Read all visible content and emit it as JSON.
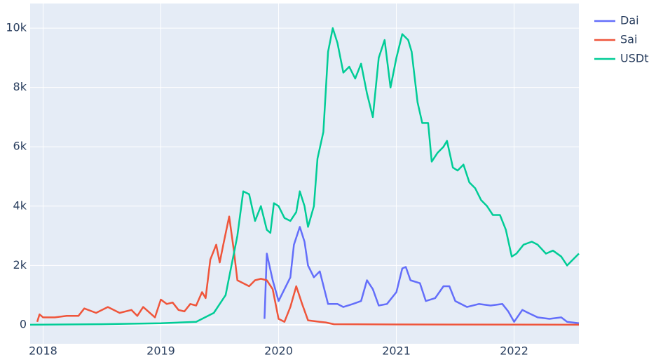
{
  "chart_data": {
    "type": "line",
    "xlim": [
      2017.89,
      2022.55
    ],
    "xticks": [
      2018,
      2019,
      2020,
      2021,
      2022
    ],
    "ylim": [
      -640,
      10830
    ],
    "yticks": [
      0,
      {
        "value": 2000,
        "label": "2k"
      },
      {
        "value": 4000,
        "label": "4k"
      },
      {
        "value": 6000,
        "label": "6k"
      },
      {
        "value": 8000,
        "label": "8k"
      },
      {
        "value": 10000,
        "label": "10k"
      }
    ],
    "grid": true,
    "legend": "right",
    "series": [
      {
        "name": "Dai",
        "color": "#636efa",
        "x": [
          2019.88,
          2019.9,
          2019.95,
          2020.0,
          2020.05,
          2020.1,
          2020.13,
          2020.18,
          2020.22,
          2020.25,
          2020.3,
          2020.35,
          2020.42,
          2020.5,
          2020.55,
          2020.63,
          2020.7,
          2020.75,
          2020.8,
          2020.85,
          2020.92,
          2021.0,
          2021.05,
          2021.08,
          2021.12,
          2021.2,
          2021.25,
          2021.33,
          2021.4,
          2021.45,
          2021.5,
          2021.6,
          2021.7,
          2021.8,
          2021.9,
          2021.95,
          2022.0,
          2022.07,
          2022.12,
          2022.2,
          2022.3,
          2022.4,
          2022.45,
          2022.55
        ],
        "values": [
          200,
          2400,
          1500,
          800,
          1200,
          1600,
          2700,
          3300,
          2800,
          2000,
          1600,
          1800,
          700,
          700,
          600,
          700,
          800,
          1500,
          1200,
          650,
          700,
          1100,
          1900,
          1950,
          1500,
          1400,
          800,
          900,
          1300,
          1300,
          800,
          600,
          700,
          650,
          700,
          450,
          100,
          500,
          400,
          250,
          200,
          250,
          100,
          50
        ]
      },
      {
        "name": "Sai",
        "color": "#EF553B",
        "x": [
          2017.95,
          2017.97,
          2018.0,
          2018.1,
          2018.2,
          2018.3,
          2018.35,
          2018.45,
          2018.55,
          2018.65,
          2018.75,
          2018.8,
          2018.85,
          2018.95,
          2019.0,
          2019.05,
          2019.1,
          2019.15,
          2019.2,
          2019.25,
          2019.3,
          2019.35,
          2019.38,
          2019.42,
          2019.47,
          2019.5,
          2019.53,
          2019.58,
          2019.62,
          2019.65,
          2019.7,
          2019.75,
          2019.8,
          2019.85,
          2019.9,
          2019.95,
          2020.0,
          2020.05,
          2020.1,
          2020.15,
          2020.2,
          2020.25,
          2020.35,
          2020.4,
          2020.47,
          2021.0,
          2022.55
        ],
        "values": [
          100,
          350,
          250,
          250,
          300,
          300,
          550,
          400,
          600,
          400,
          500,
          300,
          600,
          250,
          850,
          700,
          750,
          500,
          450,
          700,
          650,
          1100,
          900,
          2200,
          2700,
          2100,
          2700,
          3650,
          2500,
          1500,
          1400,
          1300,
          1500,
          1550,
          1500,
          1200,
          200,
          100,
          600,
          1300,
          700,
          150,
          100,
          80,
          20,
          10,
          0
        ]
      },
      {
        "name": "USDt",
        "color": "#00cc96",
        "x": [
          2017.89,
          2018.5,
          2019.0,
          2019.3,
          2019.45,
          2019.5,
          2019.55,
          2019.6,
          2019.65,
          2019.7,
          2019.75,
          2019.8,
          2019.85,
          2019.9,
          2019.93,
          2019.96,
          2020.0,
          2020.05,
          2020.1,
          2020.15,
          2020.18,
          2020.22,
          2020.25,
          2020.3,
          2020.33,
          2020.38,
          2020.42,
          2020.46,
          2020.5,
          2020.55,
          2020.6,
          2020.65,
          2020.7,
          2020.75,
          2020.8,
          2020.85,
          2020.9,
          2020.95,
          2021.0,
          2021.05,
          2021.1,
          2021.13,
          2021.18,
          2021.22,
          2021.27,
          2021.3,
          2021.35,
          2021.4,
          2021.43,
          2021.48,
          2021.52,
          2021.57,
          2021.62,
          2021.67,
          2021.72,
          2021.77,
          2021.82,
          2021.88,
          2021.93,
          2021.98,
          2022.02,
          2022.08,
          2022.15,
          2022.2,
          2022.27,
          2022.33,
          2022.4,
          2022.45,
          2022.5,
          2022.55
        ],
        "values": [
          0,
          20,
          50,
          100,
          400,
          700,
          1000,
          2000,
          3000,
          4500,
          4400,
          3500,
          4000,
          3200,
          3100,
          4100,
          4000,
          3600,
          3500,
          3800,
          4500,
          4000,
          3300,
          4000,
          5600,
          6500,
          9200,
          10000,
          9500,
          8500,
          8700,
          8300,
          8800,
          7800,
          7000,
          9000,
          9600,
          8000,
          9000,
          9800,
          9600,
          9200,
          7500,
          6800,
          6800,
          5500,
          5800,
          6000,
          6200,
          5300,
          5200,
          5400,
          4800,
          4600,
          4200,
          4000,
          3700,
          3700,
          3200,
          2300,
          2400,
          2700,
          2800,
          2700,
          2400,
          2500,
          2300,
          2000,
          2200,
          2400
        ]
      }
    ]
  }
}
